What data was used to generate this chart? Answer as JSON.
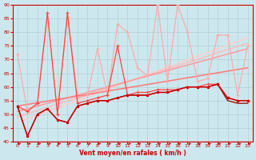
{
  "xlabel": "Vent moyen/en rafales ( km/h )",
  "xlim": [
    -0.5,
    23.5
  ],
  "ylim": [
    40,
    90
  ],
  "yticks": [
    40,
    45,
    50,
    55,
    60,
    65,
    70,
    75,
    80,
    85,
    90
  ],
  "xticks": [
    0,
    1,
    2,
    3,
    4,
    5,
    6,
    7,
    8,
    9,
    10,
    11,
    12,
    13,
    14,
    15,
    16,
    17,
    18,
    19,
    20,
    21,
    22,
    23
  ],
  "bg_color": "#cce8ee",
  "grid_color": "#aacccc",
  "lines": [
    {
      "x": [
        0,
        1,
        2,
        3,
        4,
        5,
        6,
        7,
        8,
        9,
        10,
        11,
        12,
        13,
        14,
        15,
        16,
        17,
        18,
        19,
        20,
        21,
        22,
        23
      ],
      "y": [
        53,
        42,
        50,
        52,
        48,
        47,
        53,
        54,
        55,
        55,
        56,
        57,
        57,
        57,
        58,
        58,
        59,
        60,
        60,
        60,
        61,
        56,
        55,
        55
      ],
      "color": "#cc0000",
      "lw": 1.0,
      "marker": "s",
      "ms": 2.0,
      "zorder": 5
    },
    {
      "x": [
        0,
        1,
        2,
        3,
        4,
        5,
        6,
        7,
        8,
        9,
        10,
        11,
        12,
        13,
        14,
        15,
        16,
        17,
        18,
        19,
        20,
        21,
        22,
        23
      ],
      "y": [
        53,
        42,
        50,
        52,
        48,
        47,
        53,
        54,
        55,
        55,
        56,
        57,
        57,
        57,
        58,
        58,
        59,
        60,
        60,
        60,
        61,
        55,
        54,
        54
      ],
      "color": "#990000",
      "lw": 0.9,
      "marker": null,
      "ms": 0,
      "zorder": 4
    },
    {
      "x": [
        0,
        1,
        2,
        3,
        4,
        5,
        6,
        7,
        8,
        9,
        10,
        11,
        12,
        13,
        14,
        15,
        16,
        17,
        18,
        19,
        20,
        21,
        22,
        23
      ],
      "y": [
        53,
        51,
        54,
        87,
        50,
        87,
        54,
        55,
        56,
        57,
        75,
        57,
        58,
        58,
        59,
        59,
        59,
        60,
        60,
        61,
        61,
        56,
        55,
        55
      ],
      "color": "#ff4444",
      "lw": 0.9,
      "marker": "+",
      "ms": 3.5,
      "zorder": 4
    },
    {
      "x": [
        0,
        1,
        2,
        3,
        4,
        5,
        6,
        7,
        8,
        9,
        10,
        11,
        12,
        13,
        14,
        15,
        16,
        17,
        18,
        19,
        20,
        21,
        22,
        23
      ],
      "y": [
        72,
        51,
        54,
        87,
        50,
        87,
        56,
        57,
        74,
        57,
        83,
        80,
        67,
        64,
        90,
        62,
        90,
        80,
        62,
        63,
        79,
        79,
        57,
        75
      ],
      "color": "#ffaaaa",
      "lw": 0.9,
      "marker": "+",
      "ms": 3.5,
      "zorder": 3
    },
    {
      "x": [
        0,
        23
      ],
      "y": [
        47,
        78
      ],
      "color": "#ffcccc",
      "lw": 1.1,
      "marker": null,
      "ms": 0,
      "zorder": 2,
      "linestyle": "solid"
    },
    {
      "x": [
        0,
        23
      ],
      "y": [
        49,
        76
      ],
      "color": "#ffbbbb",
      "lw": 1.1,
      "marker": null,
      "ms": 0,
      "zorder": 2,
      "linestyle": "solid"
    },
    {
      "x": [
        0,
        23
      ],
      "y": [
        51,
        74
      ],
      "color": "#ff9999",
      "lw": 1.1,
      "marker": null,
      "ms": 0,
      "zorder": 2,
      "linestyle": "solid"
    },
    {
      "x": [
        0,
        23
      ],
      "y": [
        53,
        67
      ],
      "color": "#ff7777",
      "lw": 1.1,
      "marker": null,
      "ms": 0,
      "zorder": 2,
      "linestyle": "solid"
    }
  ]
}
